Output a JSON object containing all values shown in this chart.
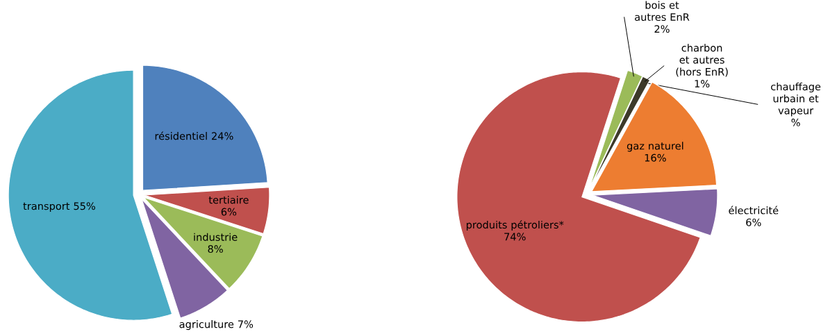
{
  "chart_data": [
    {
      "type": "pie",
      "categories": [
        "résidentiel",
        "tertiaire",
        "industrie",
        "agriculture",
        "transport"
      ],
      "values": [
        24,
        6,
        8,
        7,
        55
      ],
      "colors": [
        "#4f81bd",
        "#c0504d",
        "#9bbb59",
        "#8064a2",
        "#4bacc6"
      ],
      "value_labels": [
        "24%",
        "6%",
        "8%",
        "7%",
        "55%"
      ]
    },
    {
      "type": "pie",
      "categories": [
        "bois et autres EnR",
        "charbon et autres (hors EnR)",
        "chauffage urbain et vapeur",
        "gaz naturel",
        "électricité",
        "produits pétroliers*"
      ],
      "values": [
        2,
        1,
        0,
        16,
        6,
        74
      ],
      "colors": [
        "#9bbb59",
        "#3d3a2a",
        "#4bacc6",
        "#ed7d31",
        "#8064a2",
        "#c0504d"
      ],
      "value_labels": [
        "2%",
        "1%",
        "%",
        "16%",
        "6%",
        "74%"
      ]
    }
  ]
}
